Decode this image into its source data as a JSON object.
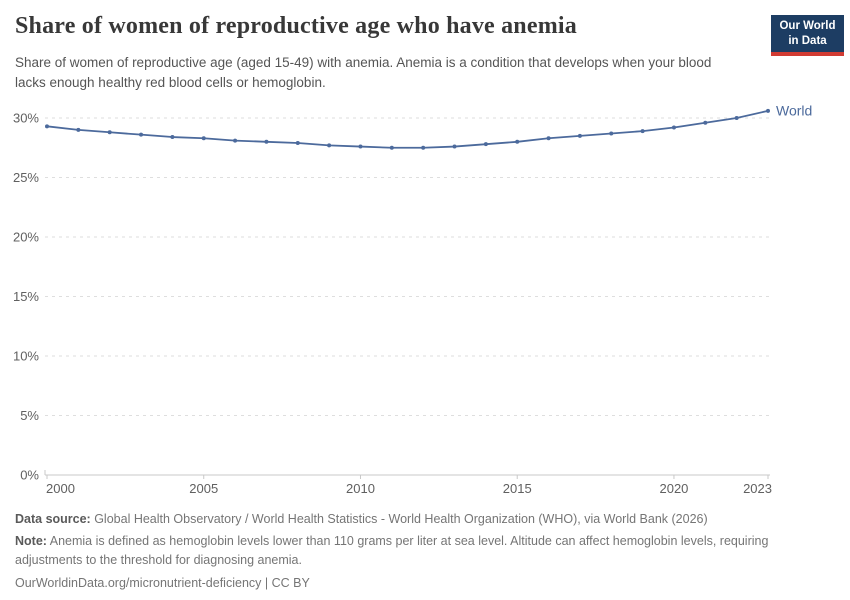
{
  "header": {
    "title": "Share of women of reproductive age who have anemia",
    "subtitle": "Share of women of reproductive age (aged 15-49) with anemia. Anemia is a condition that develops when your blood lacks enough healthy red blood cells or hemoglobin."
  },
  "logo": {
    "line1": "Our World",
    "line2": "in Data",
    "bg_color": "#1d3d63",
    "stripe_color": "#d13b32",
    "text_color": "#ffffff"
  },
  "chart_data": {
    "type": "line",
    "title": "Share of women of reproductive age who have anemia",
    "x": [
      2000,
      2001,
      2002,
      2003,
      2004,
      2005,
      2006,
      2007,
      2008,
      2009,
      2010,
      2011,
      2012,
      2013,
      2014,
      2015,
      2016,
      2017,
      2018,
      2019,
      2020,
      2021,
      2022,
      2023
    ],
    "series": [
      {
        "name": "World",
        "color": "#4c6a9c",
        "values": [
          29.3,
          29.0,
          28.8,
          28.6,
          28.4,
          28.3,
          28.1,
          28.0,
          27.9,
          27.7,
          27.6,
          27.5,
          27.5,
          27.6,
          27.8,
          28.0,
          28.3,
          28.5,
          28.7,
          28.9,
          29.2,
          29.6,
          30.0,
          30.6
        ]
      }
    ],
    "xlabel": "",
    "ylabel": "",
    "ylim": [
      0,
      30
    ],
    "yticks": [
      0,
      5,
      10,
      15,
      20,
      25,
      30
    ],
    "ytick_suffix": "%",
    "xticks": [
      2000,
      2005,
      2010,
      2015,
      2020,
      2023
    ],
    "grid": "horizontal-dashed",
    "legend_position": "end-of-line",
    "gridline_color": "#dedede",
    "axis_color": "#c8c8c8",
    "tick_label_color": "#606060"
  },
  "footer": {
    "data_source_label": "Data source:",
    "data_source_text": " Global Health Observatory / World Health Statistics - World Health Organization (WHO), via World Bank (2026)",
    "note_label": "Note:",
    "note_text": " Anemia is defined as hemoglobin levels lower than 110 grams per liter at sea level. Altitude can affect hemoglobin levels, requiring adjustments to the threshold for diagnosing anemia.",
    "citation": "OurWorldinData.org/micronutrient-deficiency | CC BY"
  }
}
